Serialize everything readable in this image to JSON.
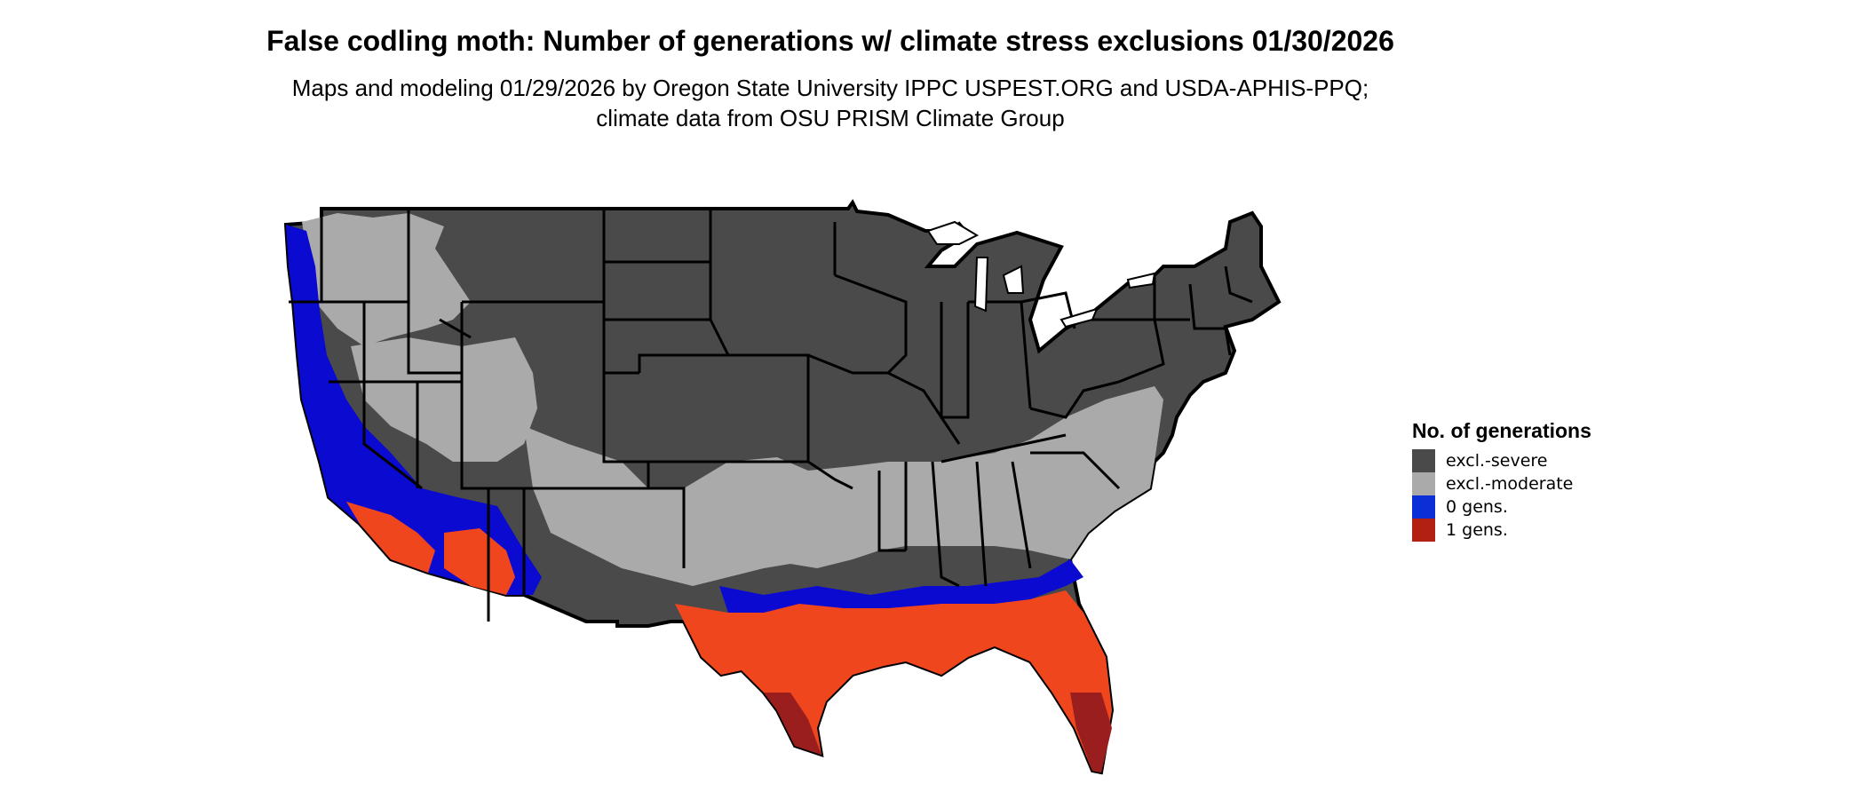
{
  "title": "False codling moth: Number of generations w/ climate stress exclusions 01/30/2026",
  "subtitle": "Maps and modeling 01/29/2026 by Oregon State University IPPC USPEST.ORG and USDA-APHIS-PPQ; climate data from OSU PRISM Climate Group",
  "legend": {
    "title": "No. of generations",
    "items": [
      {
        "label": "excl.-severe",
        "color": "#4a4a4a"
      },
      {
        "label": "excl.-moderate",
        "color": "#aaaaaa"
      },
      {
        "label": "0 gens.",
        "color": "#0a2fd6"
      },
      {
        "label": "1 gens.",
        "color": "#b22012"
      }
    ]
  },
  "colors": {
    "severe": "#4a4a4a",
    "moderate": "#aaaaaa",
    "zero": "#0a0ad0",
    "one_light": "#f0461e",
    "one_dark": "#9a1e1e",
    "border": "#000000"
  }
}
